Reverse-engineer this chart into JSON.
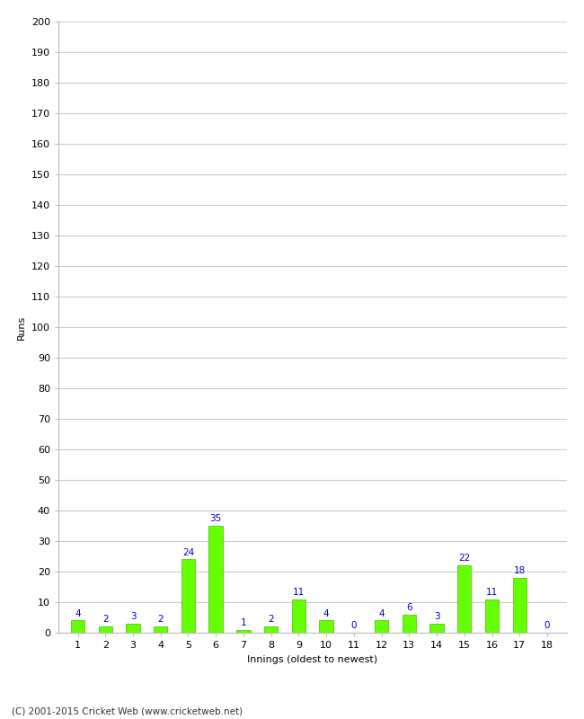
{
  "xlabel": "Innings (oldest to newest)",
  "ylabel": "Runs",
  "categories": [
    1,
    2,
    3,
    4,
    5,
    6,
    7,
    8,
    9,
    10,
    11,
    12,
    13,
    14,
    15,
    16,
    17,
    18
  ],
  "values": [
    4,
    2,
    3,
    2,
    24,
    35,
    1,
    2,
    11,
    4,
    0,
    4,
    6,
    3,
    22,
    11,
    18,
    0
  ],
  "bar_color": "#66ff00",
  "bar_edge_color": "#44bb00",
  "label_color": "#0000cc",
  "ylim": [
    0,
    200
  ],
  "yticks": [
    0,
    10,
    20,
    30,
    40,
    50,
    60,
    70,
    80,
    90,
    100,
    110,
    120,
    130,
    140,
    150,
    160,
    170,
    180,
    190,
    200
  ],
  "footer": "(C) 2001-2015 Cricket Web (www.cricketweb.net)",
  "background_color": "#ffffff",
  "grid_color": "#cccccc",
  "bar_width": 0.5,
  "label_fontsize": 7.5,
  "axis_tick_fontsize": 8,
  "axis_label_fontsize": 8,
  "footer_fontsize": 7.5
}
